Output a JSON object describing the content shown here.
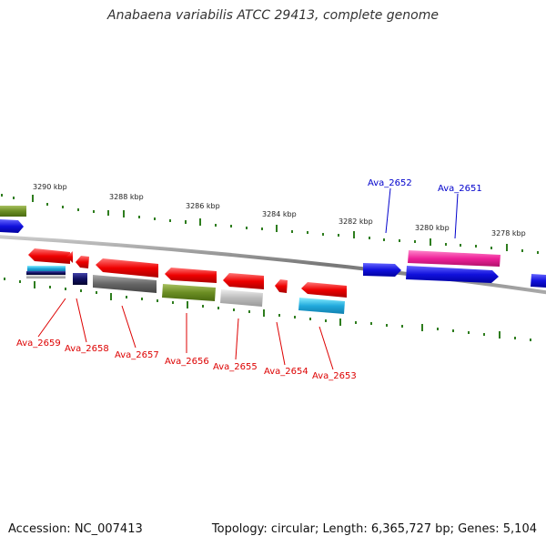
{
  "title": "Anabaena variabilis ATCC 29413, complete genome",
  "accession": "Accession: NC_007413",
  "summary": "Topology: circular; Length: 6,365,727 bp; Genes: 5,104",
  "scale_labels": [
    "3290 kbp",
    "3288 kbp",
    "3286 kbp",
    "3284 kbp",
    "3282 kbp",
    "3280 kbp",
    "3278 kbp"
  ],
  "genes_top": [
    {
      "name": "Ava_2652",
      "color": "#0000cc"
    },
    {
      "name": "Ava_2651",
      "color": "#0000cc"
    }
  ],
  "genes_bottom": [
    {
      "name": "Ava_2659",
      "color": "#dd0000"
    },
    {
      "name": "Ava_2658",
      "color": "#dd0000"
    },
    {
      "name": "Ava_2657",
      "color": "#dd0000"
    },
    {
      "name": "Ava_2656",
      "color": "#dd0000"
    },
    {
      "name": "Ava_2655",
      "color": "#dd0000"
    },
    {
      "name": "Ava_2654",
      "color": "#dd0000"
    },
    {
      "name": "Ava_2653",
      "color": "#dd0000"
    }
  ],
  "colors": {
    "tick": "#2e7d1e",
    "backbone": "#888888",
    "red": "#ee1111",
    "blue": "#1515dd",
    "magenta": "#ee2288",
    "olive": "#6b8e23",
    "gray": "#666666",
    "lightgray": "#bbbbbb",
    "cyan": "#22aadd",
    "navy": "#101060"
  }
}
